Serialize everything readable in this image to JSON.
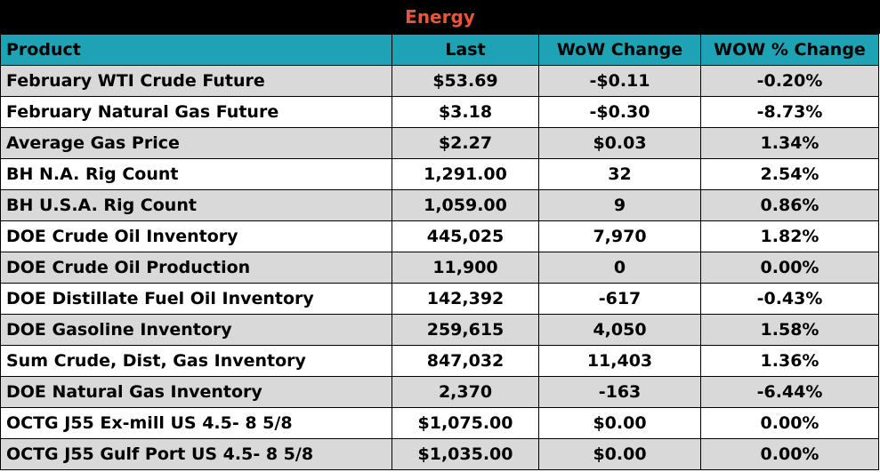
{
  "title": "Energy",
  "columns": [
    "Product",
    "Last",
    "WoW Change",
    "WOW % Change"
  ],
  "rows": [
    {
      "product": "February WTI Crude Future",
      "last": "$53.69",
      "wow_change": "-$0.11",
      "wow_pct": "-0.20%"
    },
    {
      "product": "February Natural Gas Future",
      "last": "$3.18",
      "wow_change": "-$0.30",
      "wow_pct": "-8.73%"
    },
    {
      "product": "Average Gas Price",
      "last": "$2.27",
      "wow_change": "$0.03",
      "wow_pct": "1.34%"
    },
    {
      "product": "BH N.A. Rig Count",
      "last": "1,291.00",
      "wow_change": "32",
      "wow_pct": "2.54%"
    },
    {
      "product": "BH U.S.A. Rig Count",
      "last": "1,059.00",
      "wow_change": "9",
      "wow_pct": "0.86%"
    },
    {
      "product": "DOE Crude Oil Inventory",
      "last": "445,025",
      "wow_change": "7,970",
      "wow_pct": "1.82%"
    },
    {
      "product": "DOE Crude Oil Production",
      "last": "11,900",
      "wow_change": "0",
      "wow_pct": "0.00%"
    },
    {
      "product": "DOE Distillate Fuel Oil Inventory",
      "last": "142,392",
      "wow_change": "-617",
      "wow_pct": "-0.43%"
    },
    {
      "product": "DOE Gasoline Inventory",
      "last": "259,615",
      "wow_change": "4,050",
      "wow_pct": "1.58%"
    },
    {
      "product": "Sum Crude, Dist, Gas Inventory",
      "last": "847,032",
      "wow_change": "11,403",
      "wow_pct": "1.36%"
    },
    {
      "product": "DOE Natural Gas Inventory",
      "last": "2,370",
      "wow_change": "-163",
      "wow_pct": "-6.44%"
    },
    {
      "product": "OCTG J55 Ex-mill US 4.5- 8 5/8",
      "last": "$1,075.00",
      "wow_change": "$0.00",
      "wow_pct": "0.00%"
    },
    {
      "product": "OCTG J55 Gulf Port US 4.5- 8 5/8",
      "last": "$1,035.00",
      "wow_change": "$0.00",
      "wow_pct": "0.00%"
    }
  ],
  "colors": {
    "title_background": "#000000",
    "title_text": "#e8553a",
    "header_background": "#1ea3b5",
    "alt_row_background": "#d9d9d9",
    "row_background": "#ffffff"
  }
}
